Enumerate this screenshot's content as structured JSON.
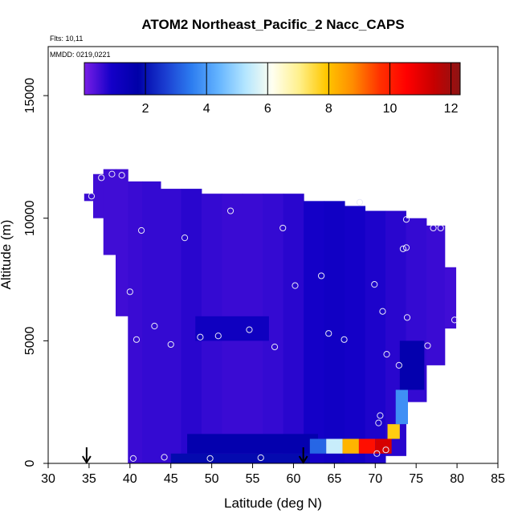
{
  "chart_data": {
    "type": "heatmap",
    "title": "ATOM2 Northeast_Pacific_2 Nacc_CAPS",
    "flights_text": "Flts: 10,11",
    "dates_text": "MMDD: 0219,0221",
    "xlabel": "Latitude (deg N)",
    "ylabel": "Altitude (m)",
    "xlim": [
      30,
      85
    ],
    "ylim": [
      0,
      17000
    ],
    "x_ticks": [
      "30",
      "35",
      "40",
      "45",
      "50",
      "55",
      "60",
      "65",
      "70",
      "75",
      "80",
      "85"
    ],
    "y_ticks": [
      "0",
      "5000",
      "10000",
      "15000"
    ],
    "colorbar": {
      "range": [
        0,
        12.3
      ],
      "ticks": [
        "2",
        "4",
        "6",
        "8",
        "10",
        "12"
      ],
      "colors": [
        "#7a1ee6",
        "#1400c8",
        "#0000a8",
        "#1a3cd0",
        "#2d7df0",
        "#64b4ff",
        "#b4e6ff",
        "#fffff0",
        "#fff08c",
        "#ffc800",
        "#ff8c00",
        "#ff3200",
        "#ff0000",
        "#c80000",
        "#8b1414"
      ]
    },
    "column_profiles": [
      {
        "lat": 35.0,
        "bottom": 10700,
        "top": 11000,
        "value": 0.55
      },
      {
        "lat": 36.0,
        "bottom": 10000,
        "top": 11800,
        "value": 0.5
      },
      {
        "lat": 37.5,
        "bottom": 8500,
        "top": 12000,
        "value": 0.5
      },
      {
        "lat": 39.0,
        "bottom": 6000,
        "top": 12000,
        "value": 0.5
      },
      {
        "lat": 40.5,
        "bottom": 0,
        "top": 11500,
        "value": 0.55
      },
      {
        "lat": 42.5,
        "bottom": 0,
        "top": 11500,
        "value": 0.6
      },
      {
        "lat": 45.0,
        "bottom": 0,
        "top": 11200,
        "value": 0.6
      },
      {
        "lat": 47.5,
        "bottom": 0,
        "top": 11200,
        "value": 0.7
      },
      {
        "lat": 50.0,
        "bottom": 0,
        "top": 11000,
        "value": 0.6
      },
      {
        "lat": 52.5,
        "bottom": 0,
        "top": 11000,
        "value": 0.55
      },
      {
        "lat": 55.0,
        "bottom": 0,
        "top": 11000,
        "value": 0.55
      },
      {
        "lat": 57.5,
        "bottom": 0,
        "top": 11000,
        "value": 0.6
      },
      {
        "lat": 60.0,
        "bottom": 0,
        "top": 11000,
        "value": 0.7
      },
      {
        "lat": 62.5,
        "bottom": 0,
        "top": 10700,
        "value": 0.9
      },
      {
        "lat": 65.0,
        "bottom": 0,
        "top": 10700,
        "value": 1.0
      },
      {
        "lat": 67.5,
        "bottom": 0,
        "top": 10500,
        "value": 0.9
      },
      {
        "lat": 70.0,
        "bottom": 0,
        "top": 10300,
        "value": 0.8
      },
      {
        "lat": 72.5,
        "bottom": 300,
        "top": 10300,
        "value": 0.7
      },
      {
        "lat": 75.0,
        "bottom": 2500,
        "top": 10000,
        "value": 0.6
      },
      {
        "lat": 77.5,
        "bottom": 4000,
        "top": 9700,
        "value": 0.55
      },
      {
        "lat": 79.5,
        "bottom": 5500,
        "top": 8000,
        "value": 0.5
      }
    ],
    "features": [
      {
        "lat_min": 48.0,
        "lat_max": 57.0,
        "alt_min": 5000,
        "alt_max": 6000,
        "value": 1.1
      },
      {
        "lat_min": 47.0,
        "lat_max": 63.0,
        "alt_min": 400,
        "alt_max": 1200,
        "value": 1.6
      },
      {
        "lat_min": 45.0,
        "lat_max": 62.0,
        "alt_min": 0,
        "alt_max": 400,
        "value": 1.9
      },
      {
        "lat_min": 62.0,
        "lat_max": 64.0,
        "alt_min": 400,
        "alt_max": 1000,
        "value": 3.2
      },
      {
        "lat_min": 64.0,
        "lat_max": 66.0,
        "alt_min": 400,
        "alt_max": 1000,
        "value": 5.5
      },
      {
        "lat_min": 66.0,
        "lat_max": 68.0,
        "alt_min": 400,
        "alt_max": 1000,
        "value": 8.2
      },
      {
        "lat_min": 68.0,
        "lat_max": 70.0,
        "alt_min": 400,
        "alt_max": 1000,
        "value": 10.3
      },
      {
        "lat_min": 70.0,
        "lat_max": 72.0,
        "alt_min": 400,
        "alt_max": 1000,
        "value": 11.2
      },
      {
        "lat_min": 71.5,
        "lat_max": 73.0,
        "alt_min": 1000,
        "alt_max": 1600,
        "value": 7.8
      },
      {
        "lat_min": 72.5,
        "lat_max": 74.0,
        "alt_min": 1600,
        "alt_max": 3000,
        "value": 3.8
      },
      {
        "lat_min": 73.0,
        "lat_max": 76.0,
        "alt_min": 3000,
        "alt_max": 5000,
        "value": 1.6
      }
    ],
    "sample_points": [
      {
        "lat": 35.3,
        "alt": 10900
      },
      {
        "lat": 36.5,
        "alt": 11650
      },
      {
        "lat": 37.8,
        "alt": 11800
      },
      {
        "lat": 39.0,
        "alt": 11750
      },
      {
        "lat": 41.4,
        "alt": 9500
      },
      {
        "lat": 40.0,
        "alt": 7000
      },
      {
        "lat": 43.0,
        "alt": 5600
      },
      {
        "lat": 40.8,
        "alt": 5050
      },
      {
        "lat": 45.0,
        "alt": 4850
      },
      {
        "lat": 46.7,
        "alt": 9200
      },
      {
        "lat": 48.6,
        "alt": 5150
      },
      {
        "lat": 50.8,
        "alt": 5200
      },
      {
        "lat": 52.3,
        "alt": 10300
      },
      {
        "lat": 54.6,
        "alt": 5450
      },
      {
        "lat": 58.7,
        "alt": 9600
      },
      {
        "lat": 57.7,
        "alt": 4750
      },
      {
        "lat": 60.2,
        "alt": 7250
      },
      {
        "lat": 63.4,
        "alt": 7650
      },
      {
        "lat": 64.3,
        "alt": 5300
      },
      {
        "lat": 66.2,
        "alt": 5050
      },
      {
        "lat": 68.1,
        "alt": 10650
      },
      {
        "lat": 69.9,
        "alt": 7300
      },
      {
        "lat": 70.9,
        "alt": 6200
      },
      {
        "lat": 71.4,
        "alt": 4450
      },
      {
        "lat": 72.9,
        "alt": 4000
      },
      {
        "lat": 73.4,
        "alt": 8750
      },
      {
        "lat": 73.8,
        "alt": 8800
      },
      {
        "lat": 73.8,
        "alt": 9950
      },
      {
        "lat": 73.9,
        "alt": 5950
      },
      {
        "lat": 76.4,
        "alt": 4800
      },
      {
        "lat": 77.1,
        "alt": 9600
      },
      {
        "lat": 78.0,
        "alt": 9600
      },
      {
        "lat": 79.7,
        "alt": 5850
      },
      {
        "lat": 70.6,
        "alt": 1950
      },
      {
        "lat": 70.4,
        "alt": 1650
      },
      {
        "lat": 70.2,
        "alt": 400
      },
      {
        "lat": 71.3,
        "alt": 550
      },
      {
        "lat": 40.4,
        "alt": 200
      },
      {
        "lat": 44.2,
        "alt": 250
      },
      {
        "lat": 49.8,
        "alt": 200
      },
      {
        "lat": 56.0,
        "alt": 230
      }
    ],
    "arrows": [
      {
        "lat": 34.7
      },
      {
        "lat": 61.2
      }
    ]
  }
}
